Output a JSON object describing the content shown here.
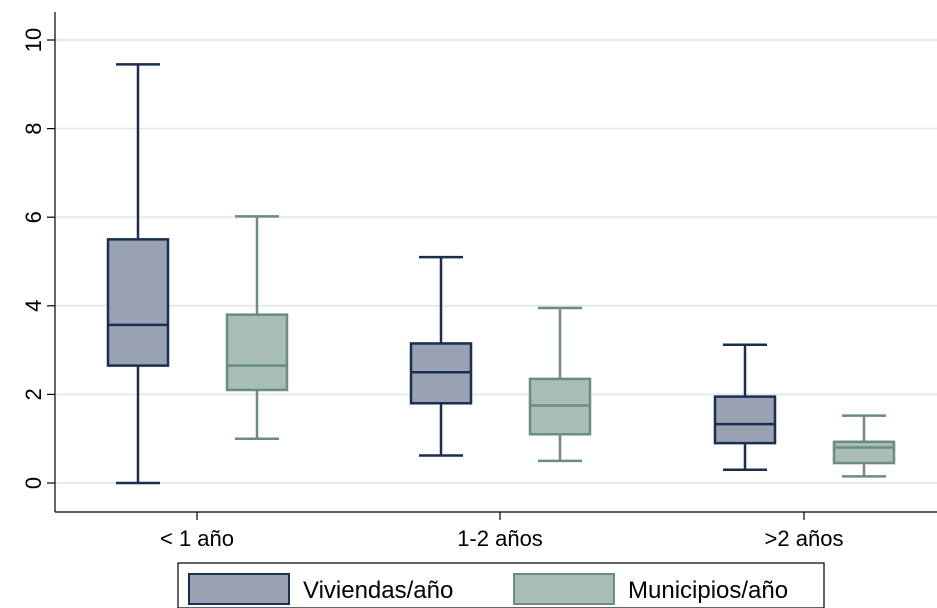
{
  "chart_data": {
    "type": "boxplot",
    "categories": [
      "< 1 año",
      "1-2 años",
      ">2 años"
    ],
    "series": [
      {
        "name": "Viviendas/año",
        "fill": "#98a2b3",
        "stroke": "#1a2e4f",
        "boxes": [
          {
            "min": 0.0,
            "q1": 2.65,
            "median": 3.57,
            "q3": 5.5,
            "max": 9.45
          },
          {
            "min": 0.62,
            "q1": 1.8,
            "median": 2.5,
            "q3": 3.15,
            "max": 5.1
          },
          {
            "min": 0.3,
            "q1": 0.9,
            "median": 1.33,
            "q3": 1.95,
            "max": 3.12
          }
        ]
      },
      {
        "name": "Municipios/año",
        "fill": "#a8bdb6",
        "stroke": "#6a8c83",
        "boxes": [
          {
            "min": 1.0,
            "q1": 2.1,
            "median": 2.65,
            "q3": 3.8,
            "max": 6.02
          },
          {
            "min": 0.5,
            "q1": 1.1,
            "median": 1.75,
            "q3": 2.35,
            "max": 3.95
          },
          {
            "min": 0.15,
            "q1": 0.45,
            "median": 0.8,
            "q3": 0.93,
            "max": 1.52
          }
        ]
      }
    ],
    "y_ticks": [
      "0",
      "2",
      "4",
      "6",
      "8",
      "10"
    ],
    "ylim": [
      0,
      10
    ],
    "grid": true,
    "gridline_color": "#e3ebea",
    "legend_position": "bottom"
  }
}
